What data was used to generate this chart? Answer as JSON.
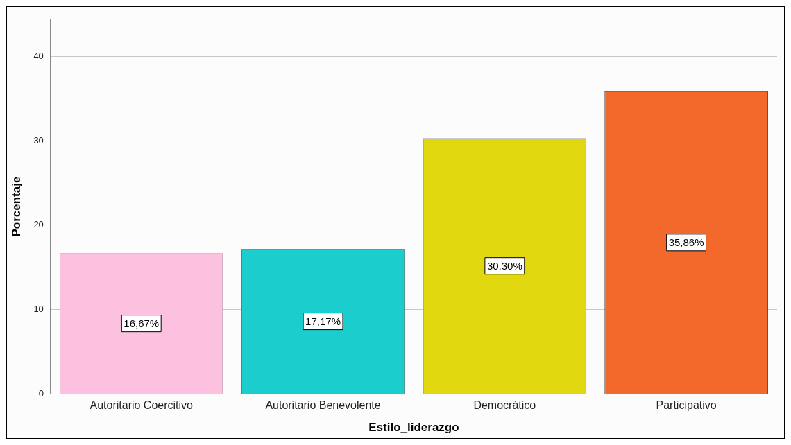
{
  "chart_data": {
    "type": "bar",
    "xlabel": "Estilo_liderazgo",
    "ylabel": "Porcentaje",
    "categories": [
      "Autoritario Coercitivo",
      "Autoritario Benevolente",
      "Democrático",
      "Participativo"
    ],
    "values": [
      16.67,
      17.17,
      30.3,
      35.86
    ],
    "colors": [
      "#fdc1e0",
      "#1ccdcd",
      "#e1d70f",
      "#f3692b"
    ],
    "value_labels": [
      "16,67%",
      "17,17%",
      "30,30%",
      "35,86%"
    ],
    "ylim": [
      0,
      44.4
    ],
    "yticks": [
      0,
      10,
      20,
      30,
      40
    ],
    "grid": "y",
    "legend": false
  }
}
